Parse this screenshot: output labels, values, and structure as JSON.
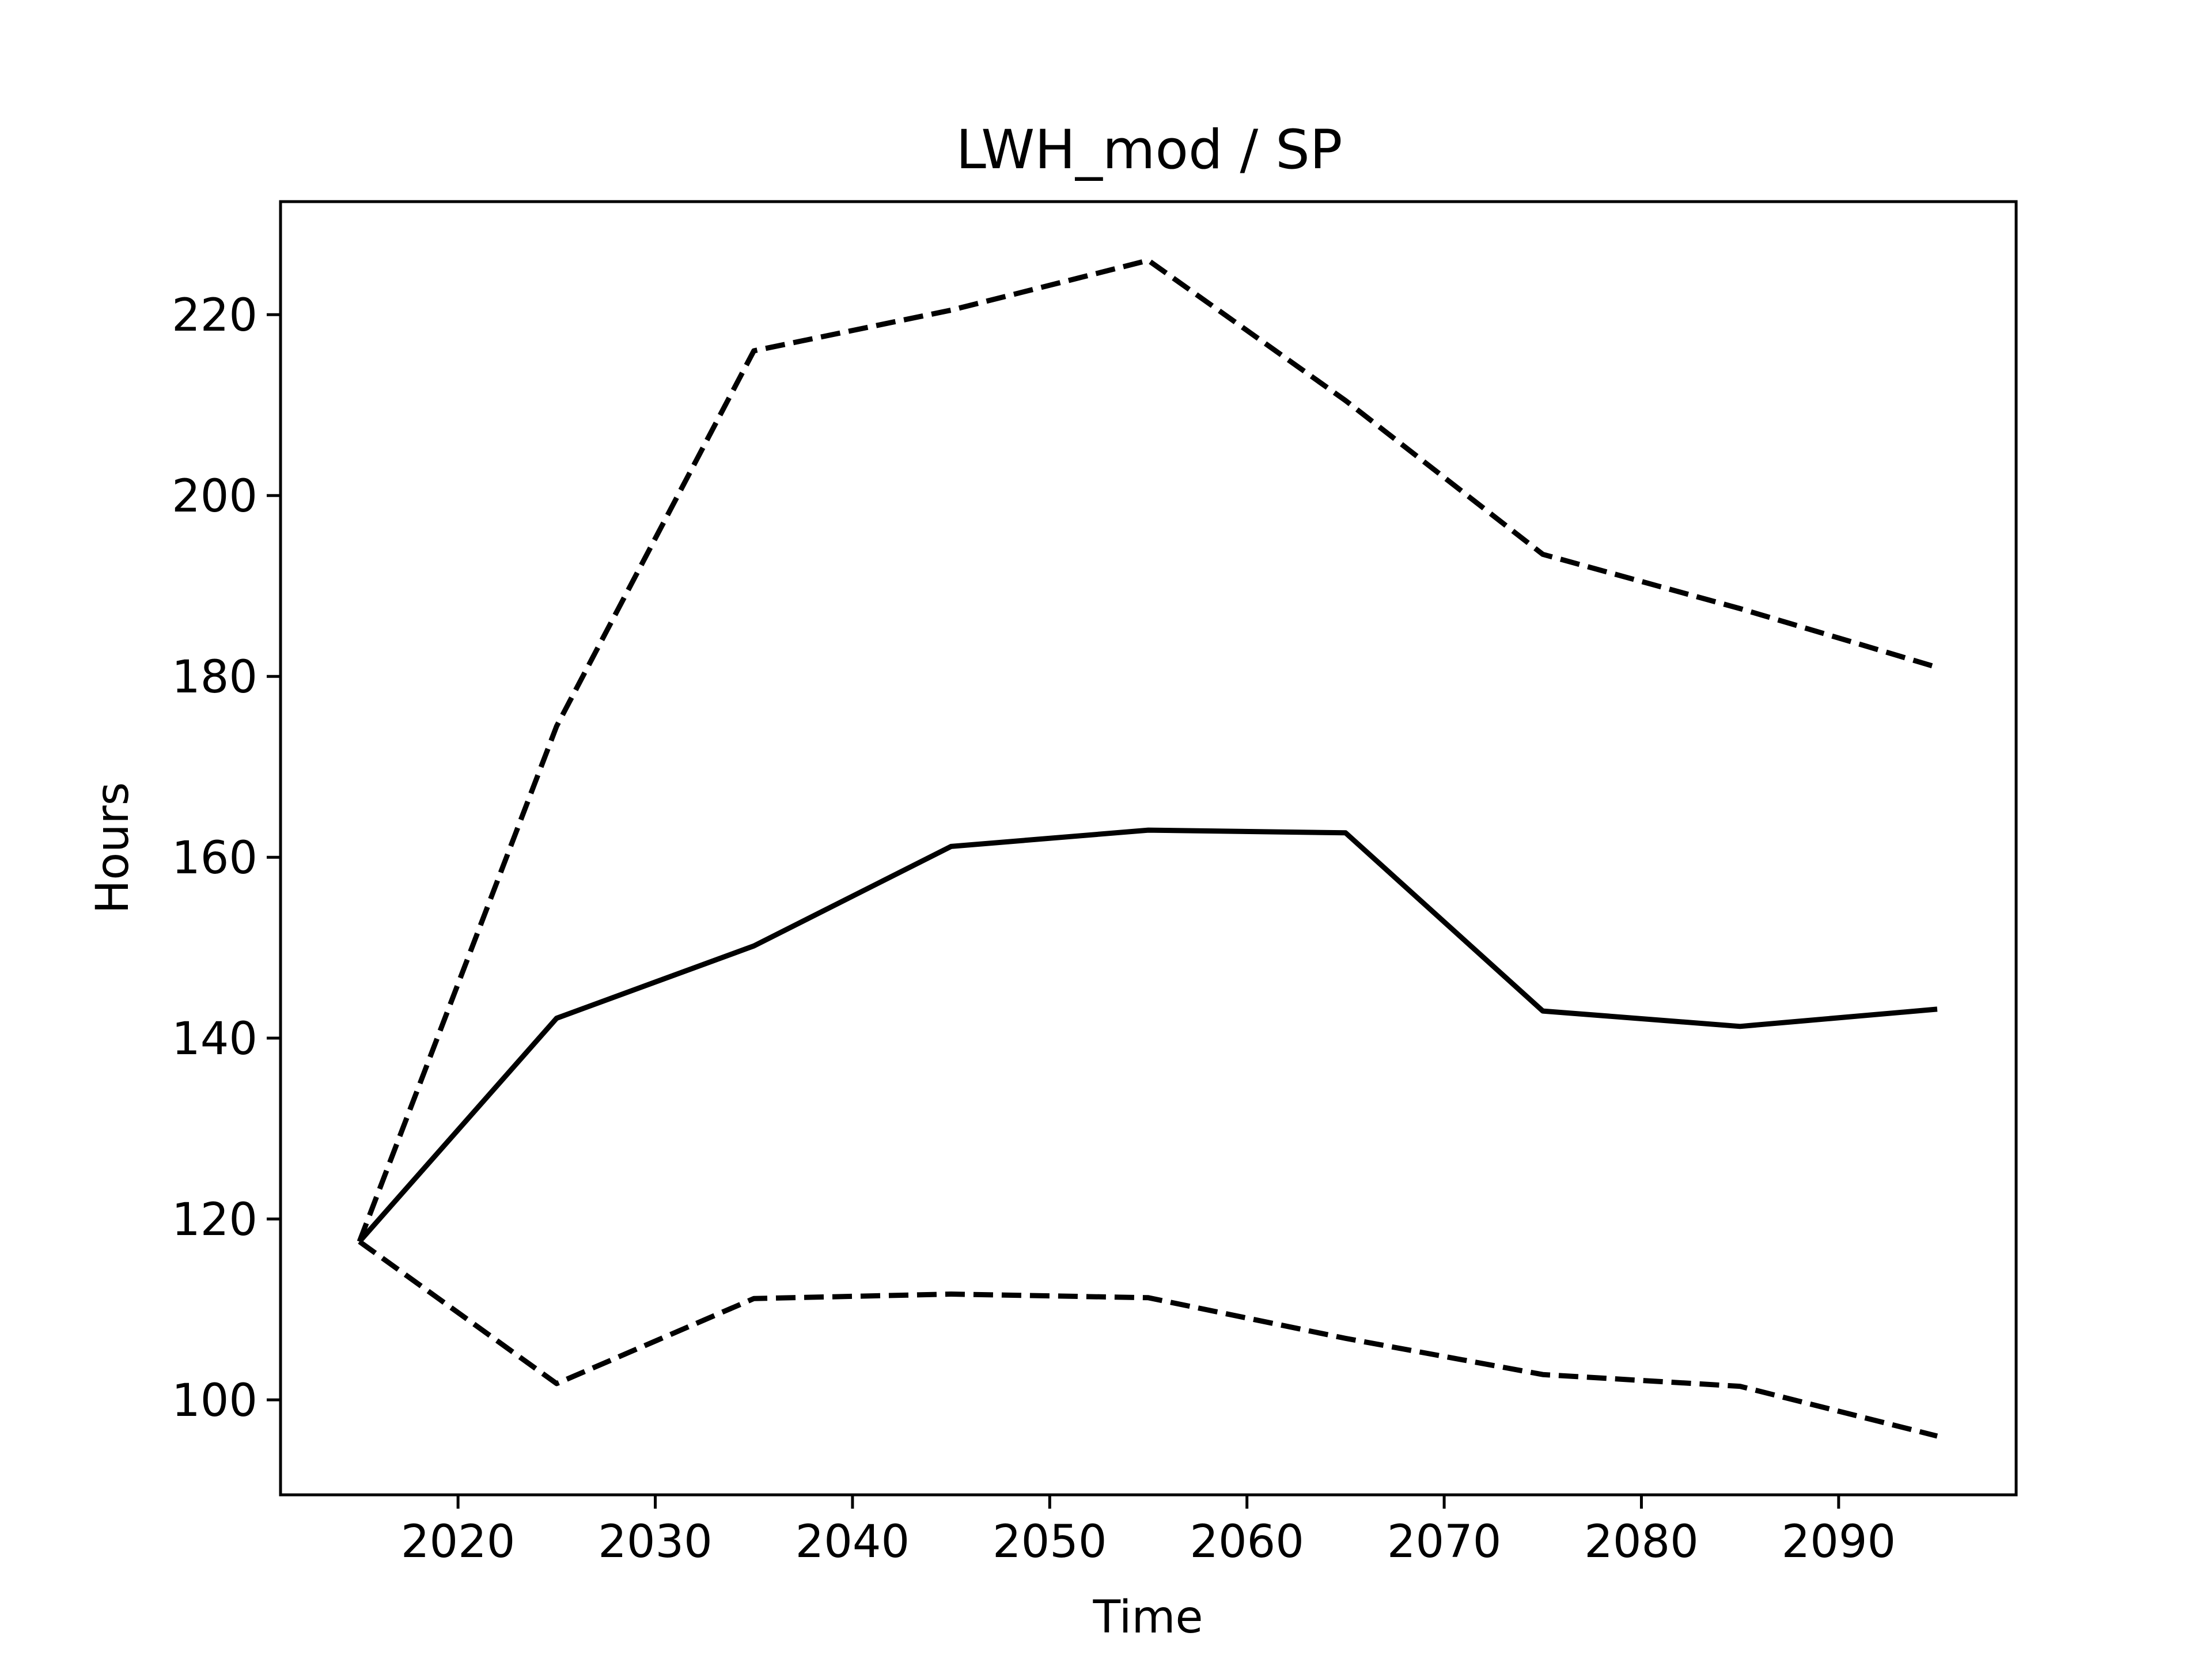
{
  "chart_data": {
    "type": "line",
    "title": "LWH_mod / SP",
    "xlabel": "Time",
    "ylabel": "Hours",
    "xlim": [
      2011,
      2099
    ],
    "ylim": [
      89.5,
      232.5
    ],
    "x_ticks": [
      2020,
      2030,
      2040,
      2050,
      2060,
      2070,
      2080,
      2090
    ],
    "y_ticks": [
      100,
      120,
      140,
      160,
      180,
      200,
      220
    ],
    "grid": false,
    "legend": "none",
    "x": [
      2015,
      2025,
      2035,
      2045,
      2055,
      2065,
      2075,
      2085,
      2095
    ],
    "series": [
      {
        "style": "solid",
        "color": "#000000",
        "values": [
          117.5,
          142.2,
          150.2,
          161.2,
          163.0,
          162.7,
          143.0,
          141.3,
          143.2
        ]
      },
      {
        "style": "dashed",
        "color": "#000000",
        "values": [
          117.5,
          174.5,
          216.0,
          220.5,
          226.0,
          210.5,
          193.5,
          187.5,
          181.0
        ]
      },
      {
        "style": "dashed",
        "color": "#000000",
        "values": [
          117.5,
          101.8,
          111.2,
          111.7,
          111.3,
          106.8,
          102.8,
          101.5,
          96.0
        ]
      }
    ]
  }
}
